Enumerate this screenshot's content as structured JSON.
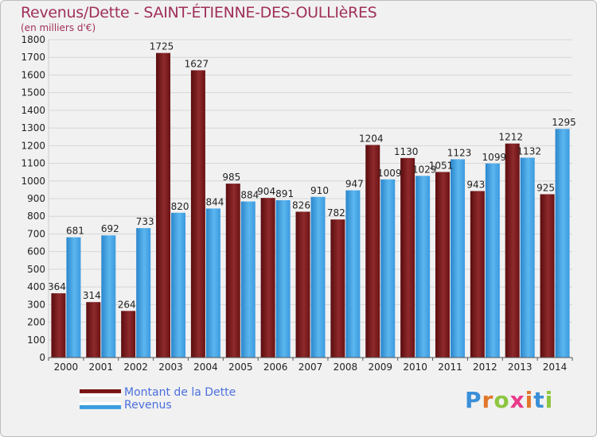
{
  "title": "Revenus/Dette - SAINT-ÉTIENNE-DES-OULLIèRES",
  "subtitle": "(en milliers d'€)",
  "logo": {
    "text": "Proxiti"
  },
  "colors": {
    "debt": "#7b1416",
    "revenue": "#3b9de0",
    "title": "#a0305a",
    "legend_text": "#4a6fdc"
  },
  "chart_data": {
    "type": "bar",
    "categories": [
      "2000",
      "2001",
      "2002",
      "2003",
      "2004",
      "2005",
      "2006",
      "2007",
      "2008",
      "2009",
      "2010",
      "2011",
      "2012",
      "2013",
      "2014"
    ],
    "series": [
      {
        "name": "Montant de la Dette",
        "values": [
          364,
          314,
          264,
          1725,
          1627,
          985,
          904,
          826,
          782,
          1204,
          1130,
          1051,
          943,
          1212,
          925
        ]
      },
      {
        "name": "Revenus",
        "values": [
          681,
          692,
          733,
          820,
          844,
          884,
          891,
          910,
          947,
          1009,
          1029,
          1123,
          1099,
          1132,
          1295
        ]
      }
    ],
    "ylim": [
      0,
      1800
    ],
    "yticks": [
      0,
      100,
      200,
      300,
      400,
      500,
      600,
      700,
      800,
      900,
      1000,
      1100,
      1200,
      1300,
      1400,
      1500,
      1600,
      1700,
      1800
    ],
    "grid": true,
    "legend": "bottom-left"
  },
  "legend": [
    {
      "label": "Montant de la Dette"
    },
    {
      "label": "Revenus"
    }
  ]
}
